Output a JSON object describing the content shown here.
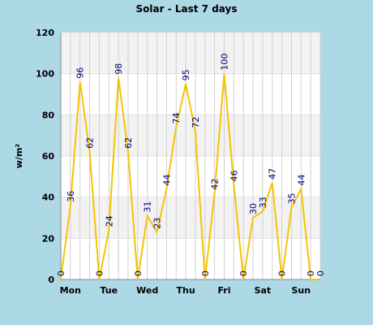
{
  "chart_data": {
    "type": "line",
    "title": "Solar - Last 7 days",
    "y_label": "w/m²",
    "categories": [
      null,
      "Mon",
      null,
      null,
      null,
      "Tue",
      null,
      null,
      null,
      "Wed",
      null,
      null,
      null,
      "Thu",
      null,
      null,
      null,
      "Fri",
      null,
      null,
      null,
      "Sat",
      null,
      null,
      null,
      "Sun",
      null,
      null
    ],
    "values": [
      0,
      36,
      96,
      62,
      0,
      24,
      98,
      62,
      0,
      31,
      23,
      44,
      74,
      95,
      72,
      0,
      42,
      100,
      46,
      0,
      30,
      33,
      47,
      0,
      35,
      44,
      0,
      0
    ],
    "color": "#f5c400",
    "label_color": "#00006e",
    "ylim": [
      0,
      120
    ],
    "yticks": [
      0,
      20,
      40,
      60,
      80,
      100,
      120
    ],
    "grid": true
  }
}
